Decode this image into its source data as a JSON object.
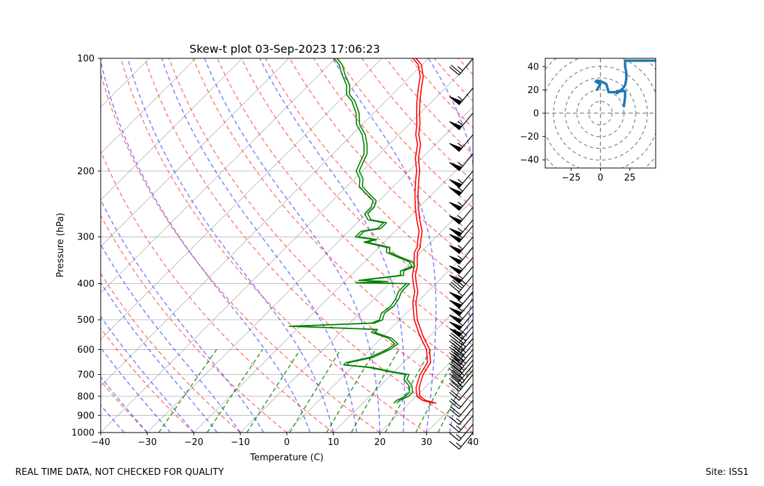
{
  "footer": {
    "left": "REAL TIME DATA, NOT CHECKED FOR QUALITY",
    "right": "Site: ISS1"
  },
  "colors": {
    "temperature": "#ff0000",
    "dewpoint": "#008000",
    "dry_adiabat": "#ff0000",
    "moist_adiabat": "#0000ff",
    "mixing_ratio": "#008000",
    "isotherm": "#808080",
    "hodograph": "#1f77b4",
    "barb": "#000000"
  },
  "chart_data": [
    {
      "type": "line",
      "subtype": "skew-t",
      "title": "Skew-t plot 03-Sep-2023 17:06:23",
      "xlabel": "Temperature (C)",
      "ylabel": "Pressure (hPa)",
      "xlim": [
        -40,
        40
      ],
      "ylim": [
        1000,
        100
      ],
      "yscale": "log",
      "xticks": [
        -40,
        -30,
        -20,
        -10,
        0,
        10,
        20,
        30,
        40
      ],
      "yticks": [
        100,
        200,
        300,
        400,
        500,
        600,
        700,
        800,
        900,
        1000
      ],
      "grid": true,
      "series": [
        {
          "role": "temperature",
          "points": [
            [
              835,
              25.5
            ],
            [
              820,
              22.5
            ],
            [
              800,
              20.5
            ],
            [
              780,
              19.5
            ],
            [
              760,
              18.5
            ],
            [
              730,
              17.5
            ],
            [
              700,
              16.5
            ],
            [
              650,
              15.5
            ],
            [
              600,
              12.5
            ],
            [
              550,
              8
            ],
            [
              500,
              3.5
            ],
            [
              450,
              -0.5
            ],
            [
              420,
              -2.5
            ],
            [
              400,
              -4.5
            ],
            [
              380,
              -6.5
            ],
            [
              360,
              -8
            ],
            [
              345,
              -9.5
            ],
            [
              330,
              -11
            ],
            [
              320,
              -11.5
            ],
            [
              310,
              -12.5
            ],
            [
              300,
              -13.5
            ],
            [
              290,
              -14.5
            ],
            [
              270,
              -17.5
            ],
            [
              250,
              -20.5
            ],
            [
              230,
              -23.5
            ],
            [
              210,
              -26.5
            ],
            [
              200,
              -28
            ],
            [
              185,
              -31
            ],
            [
              170,
              -33.5
            ],
            [
              160,
              -36
            ],
            [
              150,
              -38
            ],
            [
              140,
              -40.5
            ],
            [
              130,
              -43
            ],
            [
              120,
              -45.5
            ],
            [
              112,
              -47.5
            ],
            [
              104,
              -50.5
            ],
            [
              100,
              -53
            ]
          ]
        },
        {
          "role": "dewpoint",
          "points": [
            [
              835,
              17
            ],
            [
              820,
              17
            ],
            [
              800,
              18
            ],
            [
              780,
              18
            ],
            [
              750,
              16.5
            ],
            [
              720,
              14
            ],
            [
              700,
              13.5
            ],
            [
              690,
              10
            ],
            [
              670,
              4
            ],
            [
              660,
              -2
            ],
            [
              650,
              -2
            ],
            [
              630,
              2
            ],
            [
              600,
              4
            ],
            [
              580,
              4.5
            ],
            [
              560,
              2
            ],
            [
              540,
              -3
            ],
            [
              530,
              -3
            ],
            [
              520,
              -22
            ],
            [
              510,
              -5
            ],
            [
              500,
              -4
            ],
            [
              480,
              -5
            ],
            [
              460,
              -4.5
            ],
            [
              440,
              -5
            ],
            [
              420,
              -6
            ],
            [
              400,
              -6
            ],
            [
              398,
              -17
            ],
            [
              395,
              -11
            ],
            [
              392,
              -17
            ],
            [
              380,
              -9
            ],
            [
              370,
              -10
            ],
            [
              360,
              -8.5
            ],
            [
              350,
              -10
            ],
            [
              340,
              -13.5
            ],
            [
              330,
              -17
            ],
            [
              320,
              -18
            ],
            [
              310,
              -24
            ],
            [
              305,
              -22.5
            ],
            [
              300,
              -27
            ],
            [
              290,
              -27
            ],
            [
              285,
              -24
            ],
            [
              275,
              -24
            ],
            [
              270,
              -28
            ],
            [
              260,
              -30
            ],
            [
              250,
              -30
            ],
            [
              240,
              -31
            ],
            [
              230,
              -34
            ],
            [
              220,
              -37
            ],
            [
              210,
              -38.5
            ],
            [
              200,
              -41
            ],
            [
              190,
              -42
            ],
            [
              180,
              -43
            ],
            [
              170,
              -45
            ],
            [
              160,
              -47.5
            ],
            [
              150,
              -51
            ],
            [
              140,
              -53.5
            ],
            [
              130,
              -57
            ],
            [
              125,
              -59.5
            ],
            [
              118,
              -61.5
            ],
            [
              110,
              -65
            ],
            [
              104,
              -67.5
            ],
            [
              100,
              -70
            ]
          ]
        }
      ],
      "wind_barbs": [
        {
          "p": 100,
          "speed": 25
        },
        {
          "p": 120,
          "speed": 55
        },
        {
          "p": 140,
          "speed": 55
        },
        {
          "p": 160,
          "speed": 55
        },
        {
          "p": 180,
          "speed": 55
        },
        {
          "p": 200,
          "speed": 55
        },
        {
          "p": 210,
          "speed": 55
        },
        {
          "p": 230,
          "speed": 55
        },
        {
          "p": 250,
          "speed": 55
        },
        {
          "p": 270,
          "speed": 55
        },
        {
          "p": 280,
          "speed": 55
        },
        {
          "p": 300,
          "speed": 55
        },
        {
          "p": 320,
          "speed": 55
        },
        {
          "p": 340,
          "speed": 55
        },
        {
          "p": 360,
          "speed": 55
        },
        {
          "p": 380,
          "speed": 45
        },
        {
          "p": 400,
          "speed": 55
        },
        {
          "p": 420,
          "speed": 55
        },
        {
          "p": 440,
          "speed": 55
        },
        {
          "p": 460,
          "speed": 55
        },
        {
          "p": 480,
          "speed": 55
        },
        {
          "p": 500,
          "speed": 55
        },
        {
          "p": 520,
          "speed": 45
        },
        {
          "p": 540,
          "speed": 45
        },
        {
          "p": 560,
          "speed": 45
        },
        {
          "p": 580,
          "speed": 45
        },
        {
          "p": 600,
          "speed": 45
        },
        {
          "p": 620,
          "speed": 45
        },
        {
          "p": 640,
          "speed": 35
        },
        {
          "p": 660,
          "speed": 35
        },
        {
          "p": 680,
          "speed": 35
        },
        {
          "p": 700,
          "speed": 25
        },
        {
          "p": 740,
          "speed": 20
        },
        {
          "p": 780,
          "speed": 20
        },
        {
          "p": 820,
          "speed": 20
        },
        {
          "p": 860,
          "speed": 15
        },
        {
          "p": 900,
          "speed": 15
        },
        {
          "p": 950,
          "speed": 15
        },
        {
          "p": 1000,
          "speed": 15
        }
      ]
    },
    {
      "type": "line",
      "subtype": "hodograph",
      "xlim": [
        -47,
        47
      ],
      "ylim": [
        -47,
        47
      ],
      "xticks": [
        -25,
        0,
        25
      ],
      "yticks": [
        -40,
        -20,
        0,
        20,
        40
      ],
      "range_rings": [
        10,
        20,
        30,
        40,
        50,
        60
      ],
      "series": [
        {
          "role": "wind",
          "points": [
            [
              20,
              6
            ],
            [
              21,
              14
            ],
            [
              21,
              19
            ],
            [
              17,
              19
            ],
            [
              14,
              19
            ],
            [
              14,
              17
            ],
            [
              19,
              21
            ],
            [
              21,
              24
            ],
            [
              22,
              29
            ],
            [
              22,
              35
            ],
            [
              21,
              40
            ],
            [
              21,
              45
            ],
            [
              24,
              45
            ],
            [
              48,
              45
            ]
          ]
        },
        {
          "role": "wind-segment",
          "points": [
            [
              -3,
              20
            ],
            [
              0,
              25
            ],
            [
              -4,
              27
            ],
            [
              -3,
              28
            ],
            [
              1,
              27
            ],
            [
              5,
              25
            ],
            [
              7,
              18
            ],
            [
              14,
              18
            ],
            [
              18,
              19
            ]
          ]
        }
      ]
    }
  ]
}
